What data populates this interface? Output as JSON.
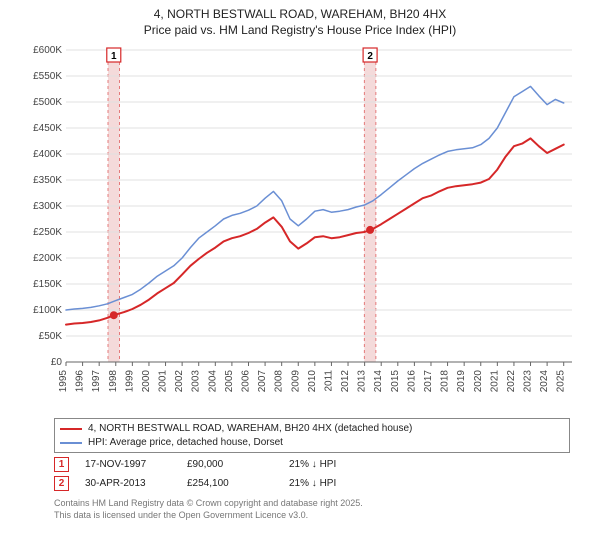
{
  "title": {
    "line1": "4, NORTH BESTWALL ROAD, WAREHAM, BH20 4HX",
    "line2": "Price paid vs. HM Land Registry's House Price Index (HPI)"
  },
  "chart": {
    "type": "line",
    "background_color": "#ffffff",
    "grid_color": "#e0e0e0",
    "axis_color": "#666666",
    "xlim": [
      1995,
      2025.5
    ],
    "ylim": [
      0,
      600
    ],
    "ytick_step": 50,
    "ytick_labels": [
      "£0",
      "£50K",
      "£100K",
      "£150K",
      "£200K",
      "£250K",
      "£300K",
      "£350K",
      "£400K",
      "£450K",
      "£500K",
      "£550K",
      "£600K"
    ],
    "xtick_step": 1,
    "xtick_labels": [
      "1995",
      "1996",
      "1997",
      "1998",
      "1999",
      "2000",
      "2001",
      "2002",
      "2003",
      "2004",
      "2005",
      "2006",
      "2007",
      "2008",
      "2009",
      "2010",
      "2011",
      "2012",
      "2013",
      "2014",
      "2015",
      "2016",
      "2017",
      "2018",
      "2019",
      "2020",
      "2021",
      "2022",
      "2023",
      "2024",
      "2025"
    ],
    "series": [
      {
        "name": "4, NORTH BESTWALL ROAD, WAREHAM, BH20 4HX (detached house)",
        "color": "#d62728",
        "line_width": 2,
        "points": [
          [
            1995.0,
            72
          ],
          [
            1995.5,
            74
          ],
          [
            1996.0,
            75
          ],
          [
            1996.5,
            77
          ],
          [
            1997.0,
            80
          ],
          [
            1997.5,
            85
          ],
          [
            1997.88,
            90
          ],
          [
            1998.5,
            96
          ],
          [
            1999.0,
            102
          ],
          [
            1999.5,
            110
          ],
          [
            2000.0,
            120
          ],
          [
            2000.5,
            132
          ],
          [
            2001.0,
            142
          ],
          [
            2001.5,
            152
          ],
          [
            2002.0,
            168
          ],
          [
            2002.5,
            185
          ],
          [
            2003.0,
            198
          ],
          [
            2003.5,
            210
          ],
          [
            2004.0,
            220
          ],
          [
            2004.5,
            232
          ],
          [
            2005.0,
            238
          ],
          [
            2005.5,
            242
          ],
          [
            2006.0,
            248
          ],
          [
            2006.5,
            256
          ],
          [
            2007.0,
            268
          ],
          [
            2007.5,
            278
          ],
          [
            2008.0,
            260
          ],
          [
            2008.5,
            232
          ],
          [
            2009.0,
            218
          ],
          [
            2009.5,
            228
          ],
          [
            2010.0,
            240
          ],
          [
            2010.5,
            242
          ],
          [
            2011.0,
            238
          ],
          [
            2011.5,
            240
          ],
          [
            2012.0,
            244
          ],
          [
            2012.5,
            248
          ],
          [
            2013.0,
            250
          ],
          [
            2013.33,
            254
          ],
          [
            2013.5,
            256
          ],
          [
            2014.0,
            265
          ],
          [
            2014.5,
            275
          ],
          [
            2015.0,
            285
          ],
          [
            2015.5,
            295
          ],
          [
            2016.0,
            305
          ],
          [
            2016.5,
            315
          ],
          [
            2017.0,
            320
          ],
          [
            2017.5,
            328
          ],
          [
            2018.0,
            335
          ],
          [
            2018.5,
            338
          ],
          [
            2019.0,
            340
          ],
          [
            2019.5,
            342
          ],
          [
            2020.0,
            345
          ],
          [
            2020.5,
            352
          ],
          [
            2021.0,
            370
          ],
          [
            2021.5,
            395
          ],
          [
            2022.0,
            415
          ],
          [
            2022.5,
            420
          ],
          [
            2023.0,
            430
          ],
          [
            2023.5,
            415
          ],
          [
            2024.0,
            402
          ],
          [
            2024.5,
            410
          ],
          [
            2025.0,
            418
          ]
        ]
      },
      {
        "name": "HPI: Average price, detached house, Dorset",
        "color": "#6a8fd4",
        "line_width": 1.5,
        "points": [
          [
            1995.0,
            100
          ],
          [
            1995.5,
            102
          ],
          [
            1996.0,
            103
          ],
          [
            1996.5,
            105
          ],
          [
            1997.0,
            108
          ],
          [
            1997.5,
            112
          ],
          [
            1998.0,
            118
          ],
          [
            1998.5,
            124
          ],
          [
            1999.0,
            130
          ],
          [
            1999.5,
            140
          ],
          [
            2000.0,
            152
          ],
          [
            2000.5,
            165
          ],
          [
            2001.0,
            175
          ],
          [
            2001.5,
            185
          ],
          [
            2002.0,
            200
          ],
          [
            2002.5,
            220
          ],
          [
            2003.0,
            238
          ],
          [
            2003.5,
            250
          ],
          [
            2004.0,
            262
          ],
          [
            2004.5,
            275
          ],
          [
            2005.0,
            282
          ],
          [
            2005.5,
            286
          ],
          [
            2006.0,
            292
          ],
          [
            2006.5,
            300
          ],
          [
            2007.0,
            315
          ],
          [
            2007.5,
            328
          ],
          [
            2008.0,
            310
          ],
          [
            2008.5,
            275
          ],
          [
            2009.0,
            262
          ],
          [
            2009.5,
            275
          ],
          [
            2010.0,
            290
          ],
          [
            2010.5,
            293
          ],
          [
            2011.0,
            288
          ],
          [
            2011.5,
            290
          ],
          [
            2012.0,
            293
          ],
          [
            2012.5,
            298
          ],
          [
            2013.0,
            302
          ],
          [
            2013.5,
            310
          ],
          [
            2014.0,
            322
          ],
          [
            2014.5,
            335
          ],
          [
            2015.0,
            348
          ],
          [
            2015.5,
            360
          ],
          [
            2016.0,
            372
          ],
          [
            2016.5,
            382
          ],
          [
            2017.0,
            390
          ],
          [
            2017.5,
            398
          ],
          [
            2018.0,
            405
          ],
          [
            2018.5,
            408
          ],
          [
            2019.0,
            410
          ],
          [
            2019.5,
            412
          ],
          [
            2020.0,
            418
          ],
          [
            2020.5,
            430
          ],
          [
            2021.0,
            450
          ],
          [
            2021.5,
            480
          ],
          [
            2022.0,
            510
          ],
          [
            2022.5,
            520
          ],
          [
            2023.0,
            530
          ],
          [
            2023.5,
            512
          ],
          [
            2024.0,
            495
          ],
          [
            2024.5,
            505
          ],
          [
            2025.0,
            498
          ]
        ]
      }
    ],
    "sale_markers": [
      {
        "n": "1",
        "x": 1997.88,
        "y": 90,
        "color": "#d62728",
        "band_color": "#f3d6d6"
      },
      {
        "n": "2",
        "x": 2013.33,
        "y": 254,
        "color": "#d62728",
        "band_color": "#f3d6d6"
      }
    ],
    "band_width_years": 0.7
  },
  "legend": {
    "items": [
      {
        "color": "#d62728",
        "label": "4, NORTH BESTWALL ROAD, WAREHAM, BH20 4HX (detached house)"
      },
      {
        "color": "#6a8fd4",
        "label": "HPI: Average price, detached house, Dorset"
      }
    ]
  },
  "sales": [
    {
      "n": "1",
      "date": "17-NOV-1997",
      "price": "£90,000",
      "pct": "21% ↓ HPI",
      "marker_color": "#d62728"
    },
    {
      "n": "2",
      "date": "30-APR-2013",
      "price": "£254,100",
      "pct": "21% ↓ HPI",
      "marker_color": "#d62728"
    }
  ],
  "footnote": {
    "line1": "Contains HM Land Registry data © Crown copyright and database right 2025.",
    "line2": "This data is licensed under the Open Government Licence v3.0."
  }
}
